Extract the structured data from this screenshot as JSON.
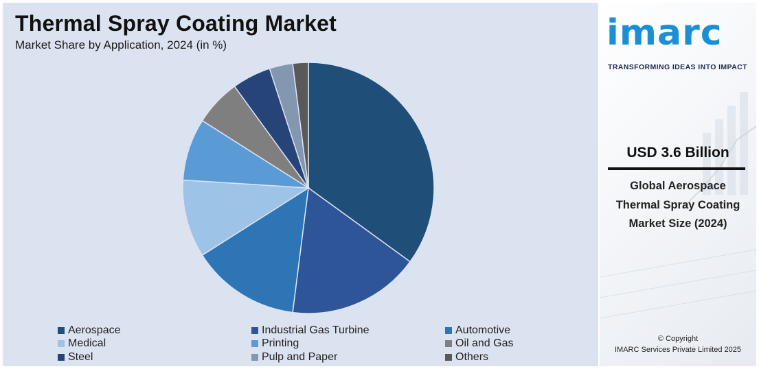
{
  "chart_data": {
    "type": "pie",
    "title": "Thermal Spray Coating Market",
    "subtitle": "Market Share by Application, 2024 (in %)",
    "categories": [
      "Aerospace",
      "Industrial Gas Turbine",
      "Automotive",
      "Medical",
      "Printing",
      "Oil and Gas",
      "Steel",
      "Pulp and Paper",
      "Others"
    ],
    "values": [
      35,
      17,
      14,
      10,
      8,
      6,
      5,
      3,
      2
    ],
    "colors": [
      "#1f4e79",
      "#2e5597",
      "#2e75b6",
      "#9dc3e6",
      "#5b9bd5",
      "#7f7f7f",
      "#264478",
      "#8497b0",
      "#595959"
    ],
    "start_angle_deg": 0,
    "direction": "clockwise",
    "legend_position": "bottom"
  },
  "sidebar": {
    "logo_text": "imarc",
    "tagline": "TRANSFORMING IDEAS INTO IMPACT",
    "market_size": "USD 3.6 Billion",
    "description": "Global Aerospace Thermal Spray Coating Market Size (2024)",
    "copyright_line1": "© Copyright",
    "copyright_line2": "IMARC Services Private Limited 2025",
    "brand_color": "#1a8fd4"
  }
}
